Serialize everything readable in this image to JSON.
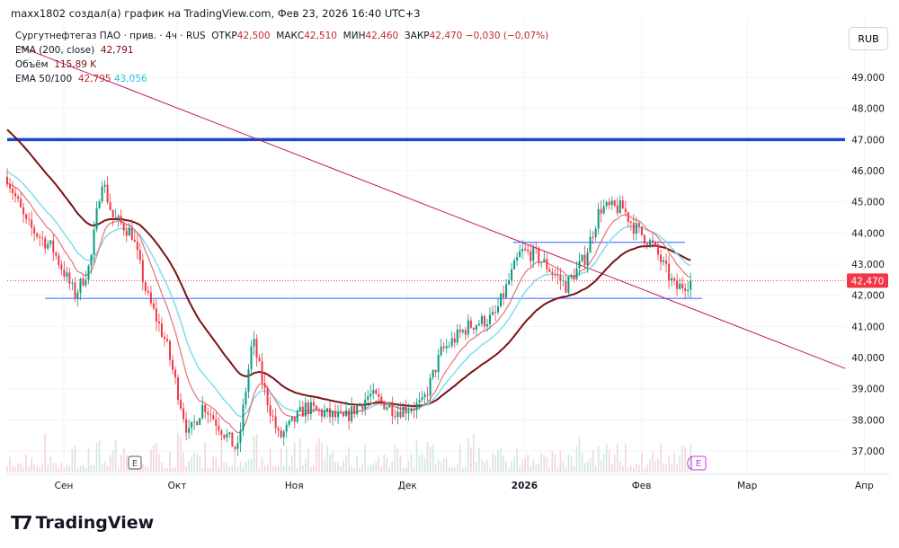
{
  "header": {
    "credit": "maxx1802 создал(а) график на TradingView.com, Фев 23, 2026 16:40 UTC+3"
  },
  "legend": {
    "symbol": "Сургутнефтегаз ПАО · прив. · 4ч · RUS",
    "open_label": "ОТКР",
    "open": "42,500",
    "high_label": "МАКС",
    "high": "42,510",
    "low_label": "МИН",
    "low": "42,460",
    "close_label": "ЗАКР",
    "close": "42,470",
    "change": "−0,030 (−0,07%)",
    "ema200_label": "EMA (200, close)",
    "ema200": "42,791",
    "volume_label": "Объём",
    "volume": "115,89 K",
    "ema50_100_label": "EMA 50/100",
    "ema50": "42,795",
    "ema100": "43,056"
  },
  "currency_button": "RUB",
  "earnings_badge": "E",
  "dividend_badge": "E",
  "logo_text": "TradingView",
  "colors": {
    "up": "#089981",
    "down": "#f23645",
    "ema200": "#7b1113",
    "ema50": "#e57373",
    "ema100": "#80deea",
    "blue_level": "#1848cc",
    "trend": "#c2185b"
  },
  "chart_data": {
    "type": "candlestick",
    "ylim": [
      36.6,
      50.2
    ],
    "yticks": [
      "49,000",
      "48,000",
      "47,000",
      "46,000",
      "45,000",
      "44,000",
      "43,000",
      "42,000",
      "41,000",
      "40,000",
      "39,000",
      "38,000",
      "37,000"
    ],
    "ytick_values": [
      49,
      48,
      47,
      46,
      45,
      44,
      43,
      42,
      41,
      40,
      39,
      38,
      37
    ],
    "xticks": [
      {
        "label": "Сен",
        "day": 15
      },
      {
        "label": "Окт",
        "day": 45
      },
      {
        "label": "Ноя",
        "day": 76
      },
      {
        "label": "Дек",
        "day": 106
      },
      {
        "label": "2026",
        "day": 137
      },
      {
        "label": "Фев",
        "day": 168
      },
      {
        "label": "Мар",
        "day": 196
      },
      {
        "label": "Апр",
        "day": 227
      }
    ],
    "price_path": [
      [
        0,
        45.8
      ],
      [
        5,
        44.3
      ],
      [
        12,
        43.5
      ],
      [
        18,
        42.0
      ],
      [
        22,
        43.0
      ],
      [
        25,
        45.8
      ],
      [
        28,
        44.5
      ],
      [
        33,
        44.0
      ],
      [
        37,
        42.0
      ],
      [
        42,
        40.5
      ],
      [
        48,
        37.5
      ],
      [
        52,
        38.5
      ],
      [
        55,
        38.0
      ],
      [
        61,
        37.0
      ],
      [
        65,
        40.6
      ],
      [
        68,
        39.0
      ],
      [
        72,
        37.4
      ],
      [
        79,
        38.4
      ],
      [
        89,
        38.0
      ],
      [
        96,
        38.8
      ],
      [
        103,
        38.3
      ],
      [
        110,
        38.5
      ],
      [
        115,
        40.2
      ],
      [
        122,
        41.0
      ],
      [
        129,
        41.3
      ],
      [
        136,
        43.4
      ],
      [
        140,
        43.3
      ],
      [
        148,
        42.3
      ],
      [
        153,
        43.2
      ],
      [
        157,
        44.8
      ],
      [
        163,
        44.8
      ],
      [
        166,
        44.2
      ],
      [
        171,
        43.6
      ],
      [
        177,
        42.2
      ],
      [
        181,
        42.47
      ]
    ],
    "ema_start": {
      "ema200": 47.4,
      "ema100": 46.0,
      "ema50": 45.6
    },
    "levels": {
      "blue": 47.0,
      "support": 41.9,
      "resistance": 43.7,
      "last": 42.47,
      "last_label": "42,470"
    },
    "trendline": [
      [
        3,
        50.0
      ],
      [
        222,
        39.65
      ]
    ]
  }
}
